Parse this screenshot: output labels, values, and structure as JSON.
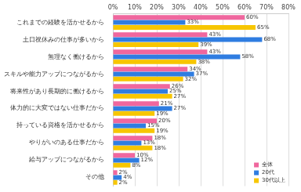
{
  "chart_data": {
    "type": "bar",
    "orientation": "horizontal",
    "categories": [
      "これまでの経験を活かせるから",
      "土日祝休みの仕事が多いから",
      "無理なく働けるから",
      "スキルや能力アップにつながるから",
      "将来性があり長期的に働けるから",
      "体力的に大変ではない仕事だから",
      "持っている資格を活かせるから",
      "やりがいのある仕事だから",
      "給与アップにつながるから",
      "その他"
    ],
    "series": [
      {
        "name": "全体",
        "color": "#f0679e",
        "values": [
          60,
          43,
          43,
          34,
          26,
          21,
          20,
          18,
          10,
          2
        ],
        "value_labels": [
          "60%",
          "43%",
          "43%",
          "34%",
          "26%",
          "21%",
          "20%",
          "18%",
          "10%",
          "2%"
        ]
      },
      {
        "name": "20代",
        "color": "#2f7de1",
        "values": [
          33,
          68,
          58,
          37,
          25,
          27,
          15,
          13,
          12,
          4
        ],
        "value_labels": [
          "33%",
          "68%",
          "58%",
          "37%",
          "25%",
          "27%",
          "15%",
          "13%",
          "12%",
          "4%"
        ]
      },
      {
        "name": "30代以上",
        "color": "#f7c600",
        "values": [
          65,
          39,
          38,
          32,
          27,
          19,
          19,
          18,
          8,
          2
        ],
        "value_labels": [
          "65%",
          "39%",
          "38%",
          "32%",
          "27%",
          "19%",
          "19%",
          "18%",
          "8%",
          "2%"
        ]
      }
    ],
    "xlim": [
      0,
      80
    ],
    "xticks": [
      {
        "value": 0,
        "label": "0%"
      },
      {
        "value": 10,
        "label": "10%"
      },
      {
        "value": 20,
        "label": "20%"
      },
      {
        "value": 30,
        "label": "30%"
      },
      {
        "value": 40,
        "label": "40%"
      },
      {
        "value": 50,
        "label": "50%"
      },
      {
        "value": 60,
        "label": "60%"
      },
      {
        "value": 70,
        "label": "70%"
      },
      {
        "value": 80,
        "label": "80%"
      }
    ],
    "grid": true,
    "legend": "lower right",
    "data_labels": true
  }
}
